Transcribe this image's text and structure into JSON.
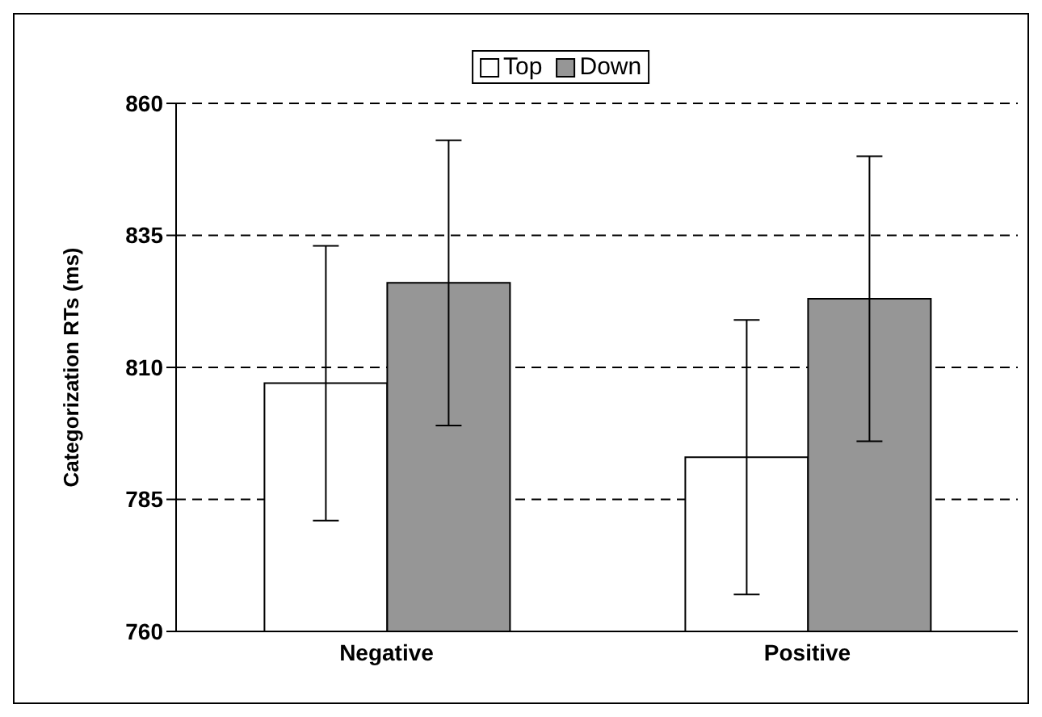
{
  "chart_data": {
    "type": "bar",
    "ylabel": "Categorization RTs (ms)",
    "categories": [
      "Negative",
      "Positive"
    ],
    "series": [
      {
        "name": "Top",
        "color": "#ffffff",
        "values": [
          807,
          793
        ],
        "errors": [
          26,
          26
        ]
      },
      {
        "name": "Down",
        "color": "#969696",
        "values": [
          826,
          823
        ],
        "errors": [
          27,
          27
        ]
      }
    ],
    "ylim": [
      760,
      860
    ],
    "yticks": [
      760,
      785,
      810,
      835,
      860
    ],
    "grid": "y",
    "legend": "top"
  }
}
